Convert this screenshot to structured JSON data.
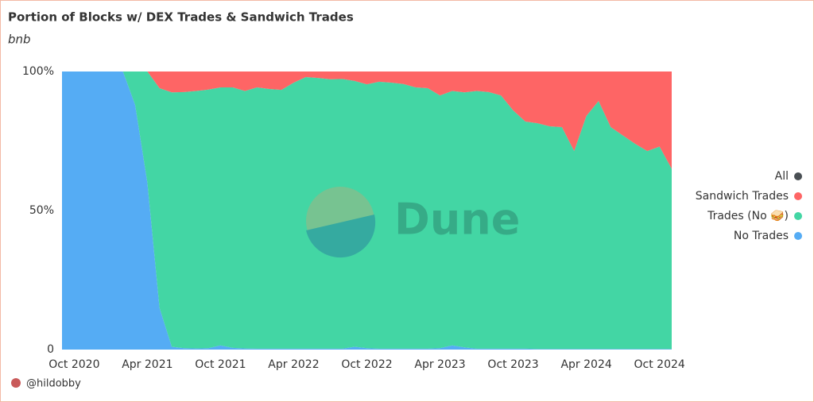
{
  "chart_data": {
    "type": "stacked_area_percent",
    "title": "Portion of Blocks w/ DEX Trades & Sandwich Trades",
    "subtitle": "bnb",
    "watermark": "Dune",
    "footer": "@hildobby",
    "x": [
      "2020-09",
      "2020-10",
      "2020-11",
      "2020-12",
      "2021-01",
      "2021-02",
      "2021-03",
      "2021-04",
      "2021-05",
      "2021-06",
      "2021-07",
      "2021-08",
      "2021-09",
      "2021-10",
      "2021-11",
      "2021-12",
      "2022-01",
      "2022-02",
      "2022-03",
      "2022-04",
      "2022-05",
      "2022-06",
      "2022-07",
      "2022-08",
      "2022-09",
      "2022-10",
      "2022-11",
      "2022-12",
      "2023-01",
      "2023-02",
      "2023-03",
      "2023-04",
      "2023-05",
      "2023-06",
      "2023-07",
      "2023-08",
      "2023-09",
      "2023-10",
      "2023-11",
      "2023-12",
      "2024-01",
      "2024-02",
      "2024-03",
      "2024-04",
      "2024-05",
      "2024-06",
      "2024-07",
      "2024-08",
      "2024-09",
      "2024-10",
      "2024-11"
    ],
    "xlim": [
      "2020-09",
      "2024-11"
    ],
    "xticks": [
      {
        "value": "2020-10",
        "label": "Oct 2020"
      },
      {
        "value": "2021-04",
        "label": "Apr 2021"
      },
      {
        "value": "2021-10",
        "label": "Oct 2021"
      },
      {
        "value": "2022-04",
        "label": "Apr 2022"
      },
      {
        "value": "2022-10",
        "label": "Oct 2022"
      },
      {
        "value": "2023-04",
        "label": "Apr 2023"
      },
      {
        "value": "2023-10",
        "label": "Oct 2023"
      },
      {
        "value": "2024-04",
        "label": "Apr 2024"
      },
      {
        "value": "2024-10",
        "label": "Oct 2024"
      }
    ],
    "ylim": [
      0,
      100
    ],
    "yticks": [
      0,
      {
        "value": 50,
        "label": "50%"
      },
      {
        "value": 100,
        "label": "100%"
      }
    ],
    "grid": false,
    "legend": "right",
    "series": [
      {
        "name": "No Trades",
        "color": "#55acf4",
        "values": [
          100,
          100,
          100,
          100,
          100,
          100,
          88,
          60,
          15,
          1,
          0.5,
          0.4,
          0.5,
          1.5,
          0.6,
          0.4,
          0.3,
          0.3,
          0.3,
          0.3,
          0.3,
          0.3,
          0.3,
          0.3,
          1,
          0.5,
          0.3,
          0.3,
          0.3,
          0.3,
          0.3,
          0.5,
          1.5,
          0.8,
          0.3,
          0.3,
          0.3,
          0.3,
          0.3,
          0.2,
          0.2,
          0.2,
          0.2,
          0.2,
          0.2,
          0.2,
          0.2,
          0.2,
          0.2,
          0.2,
          0.2
        ]
      },
      {
        "name": "Trades (No 🥪)",
        "color": "#43d6a4",
        "values": [
          0,
          0,
          0,
          0,
          0,
          0,
          12,
          40,
          79,
          91.5,
          92.1,
          92.6,
          93,
          92.8,
          93.7,
          92.6,
          94,
          93.4,
          93.1,
          95.7,
          97.7,
          97.4,
          96.9,
          97,
          95.6,
          94.9,
          96,
          95.7,
          95.2,
          94,
          93.7,
          90.9,
          91.5,
          91.7,
          92.7,
          92.3,
          91.1,
          85.7,
          81.7,
          81.2,
          80.1,
          79.8,
          71.2,
          83.8,
          89.2,
          79.8,
          76.8,
          73.8,
          71.2,
          72.8,
          64.8
        ]
      },
      {
        "name": "Sandwich Trades",
        "color": "#fe6565",
        "values": [
          0,
          0,
          0,
          0,
          0,
          0,
          0,
          0,
          6,
          7.5,
          7.4,
          7,
          6.5,
          5.7,
          5.7,
          7,
          5.7,
          6.3,
          6.6,
          4,
          2,
          2.3,
          2.8,
          2.7,
          3.4,
          4.6,
          3.7,
          4,
          4.5,
          5.7,
          6,
          8.6,
          7,
          7.5,
          7,
          7.4,
          8.6,
          14,
          18,
          18.6,
          19.7,
          20,
          28.6,
          16,
          10.6,
          20,
          23,
          26,
          28.6,
          27,
          35
        ]
      },
      {
        "name": "All",
        "color": "#4a4f54",
        "values": [
          null,
          null,
          null,
          null,
          null,
          null,
          null,
          null,
          null,
          null,
          null,
          null,
          null,
          null,
          null,
          null,
          null,
          null,
          null,
          null,
          null,
          null,
          null,
          null,
          null,
          null,
          null,
          null,
          null,
          null,
          null,
          null,
          null,
          null,
          null,
          null,
          null,
          null,
          null,
          null,
          null,
          null,
          null,
          null,
          null,
          null,
          null,
          null,
          null,
          null,
          null
        ]
      }
    ]
  }
}
